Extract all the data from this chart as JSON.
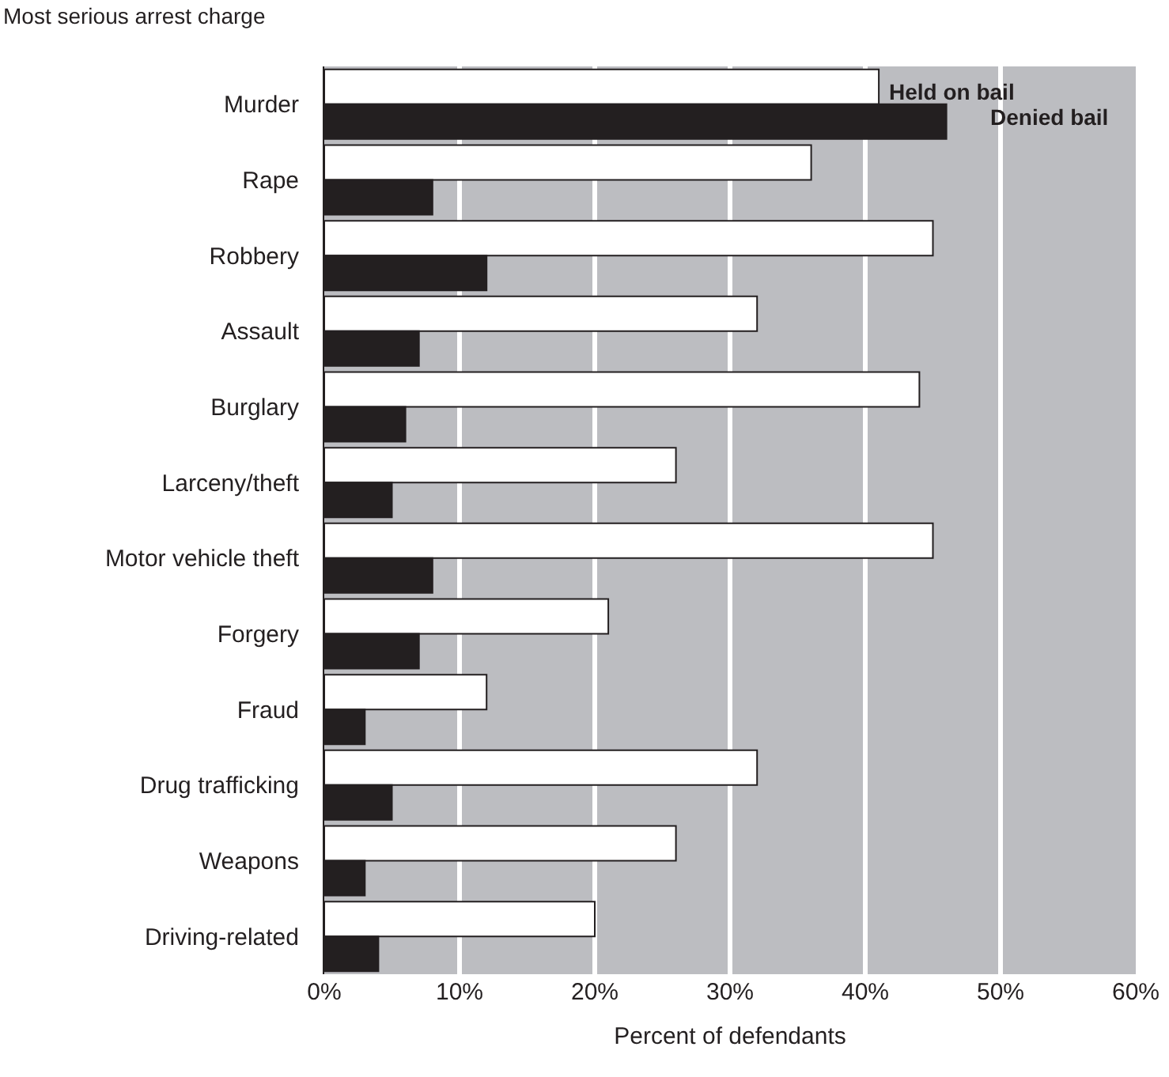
{
  "chart_data": {
    "type": "bar",
    "orientation": "horizontal",
    "ylabel": "Most serious arrest charge",
    "xlabel": "Percent of defendants",
    "categories": [
      "Murder",
      "Rape",
      "Robbery",
      "Assault",
      "Burglary",
      "Larceny/theft",
      "Motor vehicle theft",
      "Forgery",
      "Fraud",
      "Drug trafficking",
      "Weapons",
      "Driving-related"
    ],
    "series": [
      {
        "name": "Held on bail",
        "color": "#ffffff",
        "values": [
          41,
          36,
          45,
          32,
          44,
          26,
          45,
          21,
          12,
          32,
          26,
          20
        ]
      },
      {
        "name": "Denied bail",
        "color": "#231f20",
        "values": [
          46,
          8,
          12,
          7,
          6,
          5,
          8,
          7,
          3,
          5,
          3,
          4
        ]
      }
    ],
    "xlim": [
      0,
      60
    ],
    "xticks": [
      {
        "value": 0,
        "label": "0%"
      },
      {
        "value": 10,
        "label": "10%"
      },
      {
        "value": 20,
        "label": "20%"
      },
      {
        "value": 30,
        "label": "30%"
      },
      {
        "value": 40,
        "label": "40%"
      },
      {
        "value": 50,
        "label": "50%"
      },
      {
        "value": 60,
        "label": "60%"
      }
    ],
    "grid": "x",
    "legend": false
  }
}
